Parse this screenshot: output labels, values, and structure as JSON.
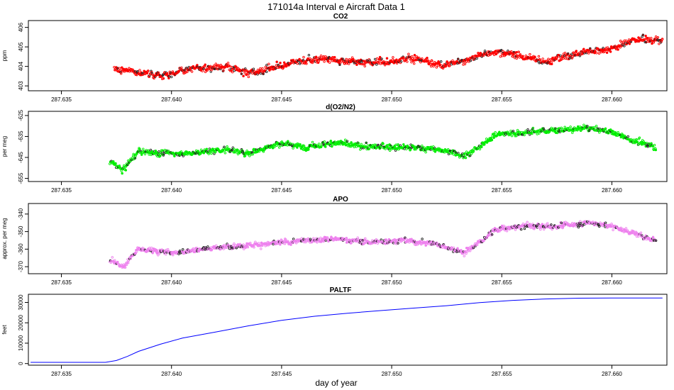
{
  "figure": {
    "title": "171014a   Interval e Aircraft Data 1",
    "xlabel": "day of year"
  },
  "chart_data": [
    {
      "type": "scatter",
      "title": "CO2",
      "ylabel": "ppm",
      "xlim": [
        287.6335,
        287.6625
      ],
      "ylim": [
        402.75,
        406.35
      ],
      "xticks": [
        "287.635",
        "287.640",
        "287.645",
        "287.650",
        "287.655",
        "287.660"
      ],
      "yticks": [
        "403",
        "404",
        "405",
        "406"
      ],
      "color": "#ff0000",
      "x_range": [
        287.6374,
        287.6623
      ],
      "anchors": [
        [
          287.6374,
          403.85
        ],
        [
          287.638,
          403.85
        ],
        [
          287.6388,
          403.6
        ],
        [
          287.6395,
          403.55
        ],
        [
          287.6405,
          403.75
        ],
        [
          287.6413,
          403.9
        ],
        [
          287.6425,
          404.0
        ],
        [
          287.6435,
          403.65
        ],
        [
          287.6445,
          403.9
        ],
        [
          287.6455,
          404.2
        ],
        [
          287.6468,
          404.4
        ],
        [
          287.648,
          404.25
        ],
        [
          287.649,
          404.2
        ],
        [
          287.65,
          404.3
        ],
        [
          287.651,
          404.45
        ],
        [
          287.652,
          404.05
        ],
        [
          287.653,
          404.2
        ],
        [
          287.654,
          404.6
        ],
        [
          287.655,
          404.75
        ],
        [
          287.656,
          404.5
        ],
        [
          287.657,
          404.25
        ],
        [
          287.658,
          404.55
        ],
        [
          287.659,
          404.8
        ],
        [
          287.66,
          404.9
        ],
        [
          287.661,
          405.4
        ],
        [
          287.6623,
          405.3
        ]
      ],
      "spread": 0.6
    },
    {
      "type": "scatter",
      "title": "d(O2/N2)",
      "ylabel": "per meg",
      "xlim": [
        287.6335,
        287.6625
      ],
      "ylim": [
        -656.5,
        -623
      ],
      "xticks": [
        "287.635",
        "287.640",
        "287.645",
        "287.650",
        "287.655",
        "287.660"
      ],
      "yticks": [
        "-625",
        "-635",
        "-645",
        "-655"
      ],
      "color": "#00ee00",
      "x_range": [
        287.6372,
        287.662
      ],
      "anchors": [
        [
          287.6372,
          -647
        ],
        [
          287.6378,
          -651
        ],
        [
          287.6385,
          -642
        ],
        [
          287.6395,
          -643
        ],
        [
          287.641,
          -643
        ],
        [
          287.6425,
          -641
        ],
        [
          287.6435,
          -643
        ],
        [
          287.645,
          -638
        ],
        [
          287.646,
          -640
        ],
        [
          287.6475,
          -638
        ],
        [
          287.649,
          -640
        ],
        [
          287.6505,
          -640
        ],
        [
          287.652,
          -641
        ],
        [
          287.6533,
          -644
        ],
        [
          287.654,
          -640
        ],
        [
          287.6547,
          -634
        ],
        [
          287.656,
          -633
        ],
        [
          287.6575,
          -632
        ],
        [
          287.659,
          -631
        ],
        [
          287.66,
          -633
        ],
        [
          287.661,
          -637
        ],
        [
          287.662,
          -640
        ]
      ],
      "spread": 4.5
    },
    {
      "type": "scatter",
      "title": "APO",
      "ylabel": "approx. per meg",
      "xlim": [
        287.6335,
        287.6625
      ],
      "ylim": [
        -374,
        -334
      ],
      "xticks": [
        "287.635",
        "287.640",
        "287.645",
        "287.650",
        "287.655",
        "287.660"
      ],
      "yticks": [
        "-340",
        "-350",
        "-360",
        "-370"
      ],
      "color": "#ee82ee",
      "x_range": [
        287.6372,
        287.662
      ],
      "anchors": [
        [
          287.6372,
          -366
        ],
        [
          287.6378,
          -370
        ],
        [
          287.6385,
          -360
        ],
        [
          287.64,
          -362
        ],
        [
          287.6415,
          -360
        ],
        [
          287.643,
          -358
        ],
        [
          287.6445,
          -357
        ],
        [
          287.646,
          -355
        ],
        [
          287.6475,
          -354
        ],
        [
          287.649,
          -356
        ],
        [
          287.6505,
          -355
        ],
        [
          287.652,
          -357
        ],
        [
          287.6533,
          -362
        ],
        [
          287.654,
          -356
        ],
        [
          287.6547,
          -349
        ],
        [
          287.656,
          -347
        ],
        [
          287.6575,
          -347
        ],
        [
          287.659,
          -345
        ],
        [
          287.66,
          -347
        ],
        [
          287.661,
          -351
        ],
        [
          287.662,
          -355
        ]
      ],
      "spread": 5
    },
    {
      "type": "line",
      "title": "PALTF",
      "ylabel": "feet",
      "xlim": [
        287.6335,
        287.6625
      ],
      "ylim": [
        -800,
        34000
      ],
      "xticks": [
        "287.635",
        "287.640",
        "287.645",
        "287.650",
        "287.655",
        "287.660"
      ],
      "yticks": [
        "0",
        "10000",
        "20000",
        "30000"
      ],
      "color": "#0000ff",
      "points": [
        [
          287.6336,
          600
        ],
        [
          287.637,
          600
        ],
        [
          287.6375,
          1500
        ],
        [
          287.638,
          3500
        ],
        [
          287.6385,
          6000
        ],
        [
          287.6395,
          9500
        ],
        [
          287.6405,
          12500
        ],
        [
          287.642,
          15500
        ],
        [
          287.6435,
          18500
        ],
        [
          287.645,
          21200
        ],
        [
          287.6465,
          23200
        ],
        [
          287.648,
          24700
        ],
        [
          287.6495,
          26000
        ],
        [
          287.651,
          27200
        ],
        [
          287.6525,
          28400
        ],
        [
          287.654,
          29900
        ],
        [
          287.6555,
          31000
        ],
        [
          287.657,
          31700
        ],
        [
          287.6585,
          32100
        ],
        [
          287.66,
          32200
        ],
        [
          287.6623,
          32200
        ]
      ]
    }
  ]
}
